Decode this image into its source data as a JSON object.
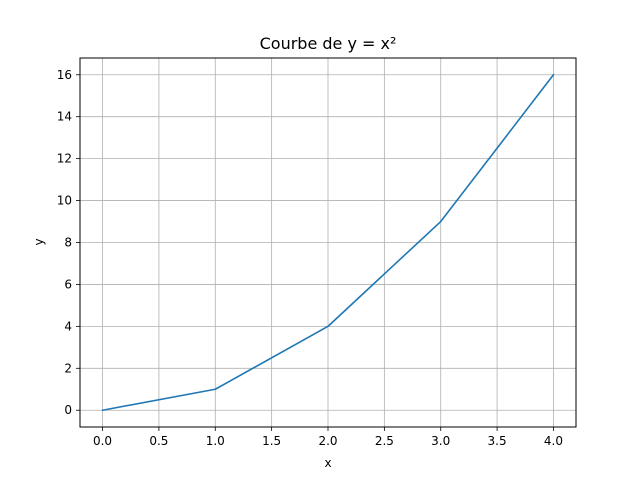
{
  "chart_data": {
    "type": "line",
    "title": "Courbe de y = x²",
    "xlabel": "x",
    "ylabel": "y",
    "x": [
      0,
      1,
      2,
      3,
      4
    ],
    "series": [
      {
        "values": [
          0,
          1,
          4,
          9,
          16
        ],
        "color": "#1f77b4"
      }
    ],
    "xlim": [
      -0.2,
      4.2
    ],
    "ylim": [
      -0.8,
      16.8
    ],
    "xticks": [
      0.0,
      0.5,
      1.0,
      1.5,
      2.0,
      2.5,
      3.0,
      3.5,
      4.0
    ],
    "xtick_labels": [
      "0.0",
      "0.5",
      "1.0",
      "1.5",
      "2.0",
      "2.5",
      "3.0",
      "3.5",
      "4.0"
    ],
    "yticks": [
      0,
      2,
      4,
      6,
      8,
      10,
      12,
      14,
      16
    ],
    "ytick_labels": [
      "0",
      "2",
      "4",
      "6",
      "8",
      "10",
      "12",
      "14",
      "16"
    ],
    "grid": true,
    "grid_color": "#b0b0b0",
    "legend": false
  }
}
